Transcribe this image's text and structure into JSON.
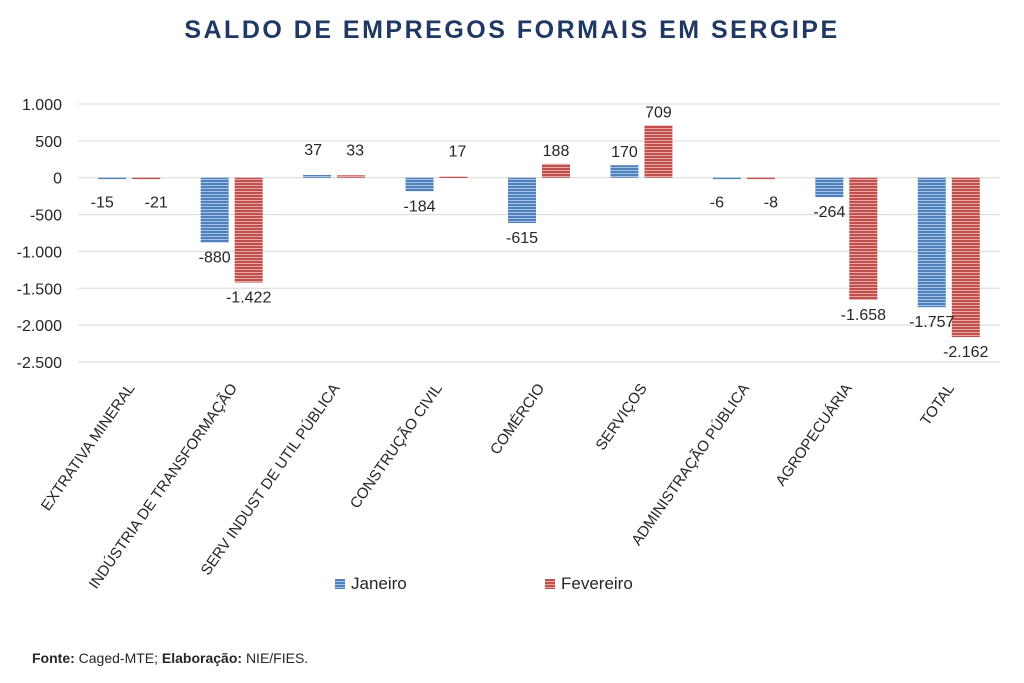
{
  "chart_data": {
    "type": "bar",
    "title": "SALDO DE EMPREGOS FORMAIS EM SERGIPE",
    "categories": [
      "EXTRATIVA MINERAL",
      "INDÚSTRIA DE TRANSFORMAÇÃO",
      "SERV INDUST DE UTIL PÚBLICA",
      "CONSTRUÇÃO CIVIL",
      "COMÉRCIO",
      "SERVIÇOS",
      "ADMINISTRAÇÃO PÚBLICA",
      "AGROPECUÁRIA",
      "TOTAL"
    ],
    "series": [
      {
        "name": "Janeiro",
        "color": "#4f81bd",
        "values": [
          -15,
          -880,
          37,
          -184,
          -615,
          170,
          -6,
          -264,
          -1757
        ],
        "labels": [
          "-15",
          "-880",
          "37",
          "-184",
          "-615",
          "170",
          "-6",
          "-264",
          "-1.757"
        ]
      },
      {
        "name": "Fevereiro",
        "color": "#c0504d",
        "values": [
          -21,
          -1422,
          33,
          17,
          188,
          709,
          -8,
          -1658,
          -2162
        ],
        "labels": [
          "-21",
          "-1.422",
          "33",
          "17",
          "188",
          "709",
          "-8",
          "-1.658",
          "-2.162"
        ]
      }
    ],
    "yticks": [
      1000,
      500,
      0,
      -500,
      -1000,
      -1500,
      -2000,
      -2500
    ],
    "ytick_labels": [
      "1.000",
      "500",
      "0",
      "-500",
      "-1.000",
      "-1.500",
      "-2.000",
      "-2.500"
    ],
    "ylim": [
      -2500,
      1000
    ],
    "grid": true,
    "legend_position": "bottom"
  },
  "footer": {
    "source_label": "Fonte:",
    "source_value": "Caged-MTE;",
    "credit_label": "Elaboração:",
    "credit_value": "NIE/FIES."
  }
}
